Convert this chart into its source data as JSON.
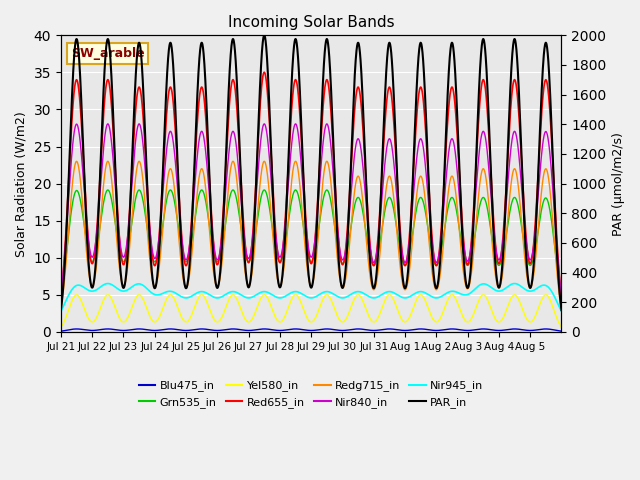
{
  "title": "Incoming Solar Bands",
  "ylabel_left": "Solar Radiation (W/m2)",
  "ylabel_right": "PAR (μmol/m2/s)",
  "ylim_left": [
    0,
    40
  ],
  "ylim_right": [
    0,
    2000
  ],
  "annotation": "SW_arable",
  "n_days": 16,
  "background_color": "#e8e8e8",
  "series": [
    {
      "name": "Blu475_in",
      "color": "#0000cc",
      "lw": 1.0,
      "secondary": false
    },
    {
      "name": "Grn535_in",
      "color": "#00cc00",
      "lw": 1.0,
      "secondary": false
    },
    {
      "name": "Yel580_in",
      "color": "#ffff00",
      "lw": 1.0,
      "secondary": false
    },
    {
      "name": "Red655_in",
      "color": "#ff0000",
      "lw": 1.2,
      "secondary": false
    },
    {
      "name": "Redg715_in",
      "color": "#ff8800",
      "lw": 1.0,
      "secondary": false
    },
    {
      "name": "Nir840_in",
      "color": "#cc00cc",
      "lw": 1.0,
      "secondary": false
    },
    {
      "name": "Nir945_in",
      "color": "#00ffff",
      "lw": 1.2,
      "secondary": false
    },
    {
      "name": "PAR_in",
      "color": "#000000",
      "lw": 1.5,
      "secondary": true
    }
  ],
  "tick_labels": [
    "Jul 21",
    "Jul 22",
    "Jul 23",
    "Jul 24",
    "Jul 25",
    "Jul 26",
    "Jul 27",
    "Jul 28",
    "Jul 29",
    "Jul 30",
    "Jul 31",
    "Aug 1",
    "Aug 2",
    "Aug 3",
    "Aug 4",
    "Aug 5"
  ],
  "grid_color": "#ffffff",
  "peak_widths": {
    "Blu475_in": 0.3,
    "Grn535_in": 0.3,
    "Yel580_in": 0.25,
    "Red655_in": 0.25,
    "Redg715_in": 0.25,
    "Nir840_in": 0.27,
    "Nir945_in": 0.4,
    "PAR_in": 0.22
  },
  "day_peaks": {
    "Blu475_in": [
      0.4,
      0.4,
      0.4,
      0.4,
      0.4,
      0.4,
      0.4,
      0.4,
      0.4,
      0.4,
      0.4,
      0.4,
      0.4,
      0.4,
      0.4,
      0.4
    ],
    "Grn535_in": [
      19,
      19,
      19,
      19,
      19,
      19,
      19,
      19,
      19,
      18,
      18,
      18,
      18,
      18,
      18,
      18
    ],
    "Yel580_in": [
      5,
      5,
      5,
      5,
      5,
      5,
      5,
      5,
      5,
      5,
      5,
      5,
      5,
      5,
      5,
      5
    ],
    "Red655_in": [
      34,
      34,
      33,
      33,
      33,
      34,
      35,
      34,
      34,
      33,
      33,
      33,
      33,
      34,
      34,
      34
    ],
    "Redg715_in": [
      23,
      23,
      23,
      22,
      22,
      23,
      23,
      23,
      23,
      21,
      21,
      21,
      21,
      22,
      22,
      22
    ],
    "Nir840_in": [
      28,
      28,
      28,
      27,
      27,
      27,
      28,
      28,
      28,
      26,
      26,
      26,
      26,
      27,
      27,
      27
    ],
    "Nir945_in": [
      6,
      6,
      6,
      5,
      5,
      5,
      5,
      5,
      5,
      5,
      5,
      5,
      5,
      6,
      6,
      6
    ],
    "PAR_in": [
      39.5,
      39.5,
      39,
      39,
      39,
      39.5,
      40,
      39.5,
      39.5,
      39,
      39,
      39,
      39,
      39.5,
      39.5,
      39
    ]
  },
  "par_scale": 50
}
